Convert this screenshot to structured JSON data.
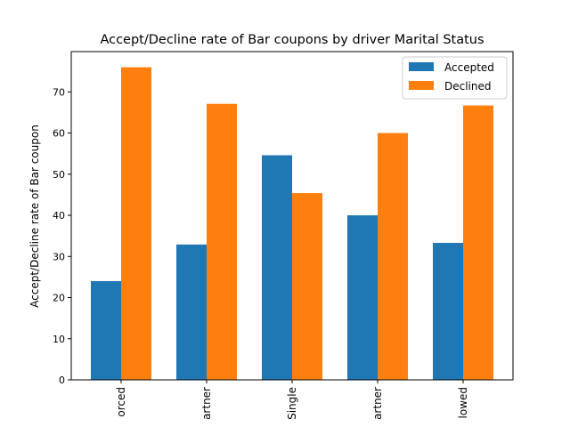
{
  "chart_data": {
    "type": "bar",
    "title": "Accept/Decline rate of Bar coupons by driver Marital Status",
    "xlabel": "",
    "ylabel": "Accept/Decline rate of Bar coupon",
    "categories": [
      "orced",
      "artner",
      "Single",
      "artner",
      "lowed"
    ],
    "series": [
      {
        "name": "Accepted",
        "color": "#1f77b4",
        "values": [
          24.0,
          32.9,
          54.6,
          40.0,
          33.3
        ]
      },
      {
        "name": "Declined",
        "color": "#ff7f0e",
        "values": [
          76.0,
          67.1,
          45.4,
          60.0,
          66.7
        ]
      }
    ],
    "ylim": [
      0,
      79.8
    ],
    "yticks": [
      0,
      10,
      20,
      30,
      40,
      50,
      60,
      70
    ],
    "legend": "top-right",
    "grid": false
  }
}
